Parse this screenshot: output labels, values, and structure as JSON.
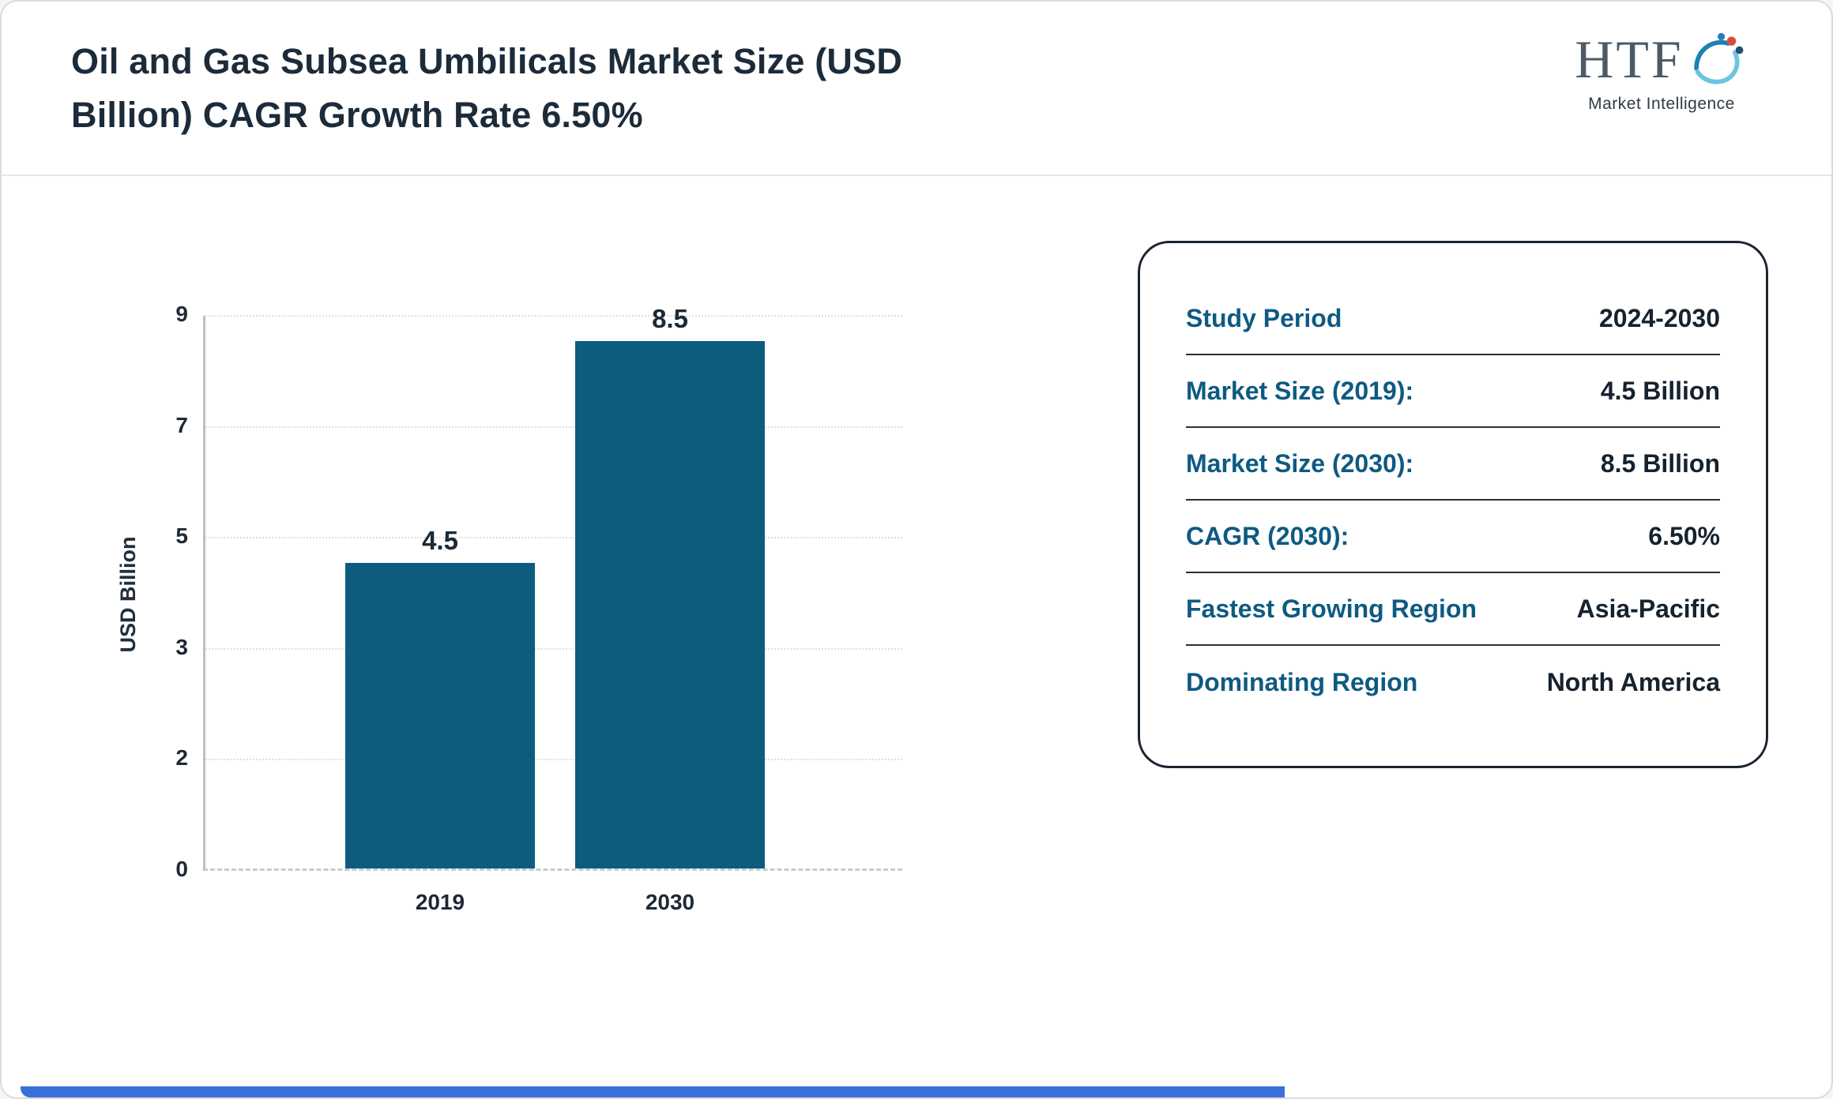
{
  "page": {
    "title": "Oil and Gas Subsea Umbilicals Market Size (USD Billion) CAGR Growth Rate 6.50%"
  },
  "logo": {
    "name": "HTF",
    "tagline": "Market Intelligence",
    "swoosh_icon": "swirl-with-figures",
    "colors": {
      "teal": "#1f7fb5",
      "light_blue": "#6cc4e0",
      "red": "#d94f3d",
      "dark": "#23506e"
    }
  },
  "chart_data": {
    "type": "bar",
    "title": "Oil and Gas Subsea Umbilicals Market Size (USD Billion) CAGR Growth Rate 6.50%",
    "categories": [
      "2019",
      "2030"
    ],
    "values": [
      4.5,
      8.5
    ],
    "value_labels": [
      "4.5",
      "8.5"
    ],
    "xlabel": "",
    "ylabel": "USD Billion",
    "yticks": [
      0,
      2,
      3,
      5,
      7,
      9
    ],
    "ylim": [
      0,
      9
    ],
    "grid": true,
    "legend": false,
    "bar_color": "#0d5c7e"
  },
  "info_panel": {
    "rows": [
      {
        "label": "Study Period",
        "value": "2024-2030"
      },
      {
        "label": "Market Size (2019):",
        "value": "4.5 Billion"
      },
      {
        "label": "Market Size (2030):",
        "value": "8.5 Billion"
      },
      {
        "label": "CAGR (2030):",
        "value": "6.50%"
      },
      {
        "label": "Fastest Growing Region",
        "value": "Asia-Pacific"
      },
      {
        "label": "Dominating Region",
        "value": "North America"
      }
    ]
  },
  "colors": {
    "title_text": "#1c2b3a",
    "label_blue": "#0e5a82",
    "bar_teal": "#0d5c7e",
    "footer_accent_blue": "#3b6fd9"
  }
}
